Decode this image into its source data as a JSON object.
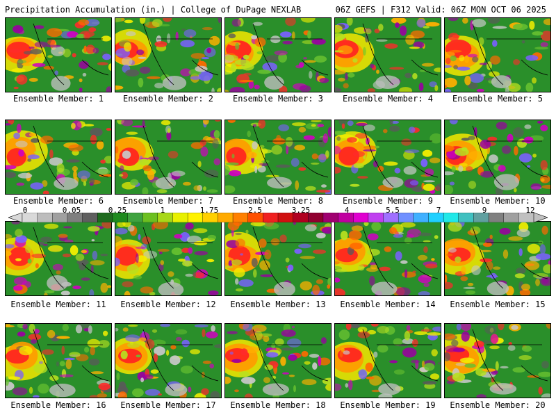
{
  "header": {
    "left": "Precipitation Accumulation (in.) | College of DuPage NEXLAB",
    "right": "06Z GEFS | F312 Valid: 06Z MON OCT 06 2025"
  },
  "members": [
    {
      "label": "Ensemble Member: 1"
    },
    {
      "label": "Ensemble Member: 2"
    },
    {
      "label": "Ensemble Member: 3"
    },
    {
      "label": "Ensemble Member: 4"
    },
    {
      "label": "Ensemble Member: 5"
    },
    {
      "label": "Ensemble Member: 6"
    },
    {
      "label": "Ensemble Member: 7"
    },
    {
      "label": "Ensemble Member: 8"
    },
    {
      "label": "Ensemble Member: 9"
    },
    {
      "label": "Ensemble Member: 10"
    },
    {
      "label": "Ensemble Member: 11"
    },
    {
      "label": "Ensemble Member: 12"
    },
    {
      "label": "Ensemble Member: 13"
    },
    {
      "label": "Ensemble Member: 14"
    },
    {
      "label": "Ensemble Member: 15"
    },
    {
      "label": "Ensemble Member: 16"
    },
    {
      "label": "Ensemble Member: 17"
    },
    {
      "label": "Ensemble Member: 18"
    },
    {
      "label": "Ensemble Member: 19"
    },
    {
      "label": "Ensemble Member: 20"
    }
  ],
  "colorbar": {
    "tick_labels": [
      "0",
      "0.05",
      "0.25",
      "1",
      "1.75",
      "2.5",
      "3.25",
      "4",
      "5.5",
      "7",
      "9",
      "12"
    ],
    "colors": [
      "#d9d9d9",
      "#bdbdbd",
      "#a0a0a0",
      "#7f7f7f",
      "#5f5f5f",
      "#1e6b1e",
      "#1e8a1e",
      "#3fa33f",
      "#6cc020",
      "#a8d818",
      "#e8f000",
      "#fff200",
      "#ffd000",
      "#ffaa00",
      "#ff8000",
      "#ff5000",
      "#f02020",
      "#d01010",
      "#b00020",
      "#900030",
      "#a00070",
      "#c000a0",
      "#e000d0",
      "#c040f0",
      "#a070ff",
      "#7090ff",
      "#40b0ff",
      "#20d0ff",
      "#20e8e8",
      "#40c0c0",
      "#60a0a0",
      "#808080",
      "#a0a0a0",
      "#c0c0c0"
    ]
  }
}
